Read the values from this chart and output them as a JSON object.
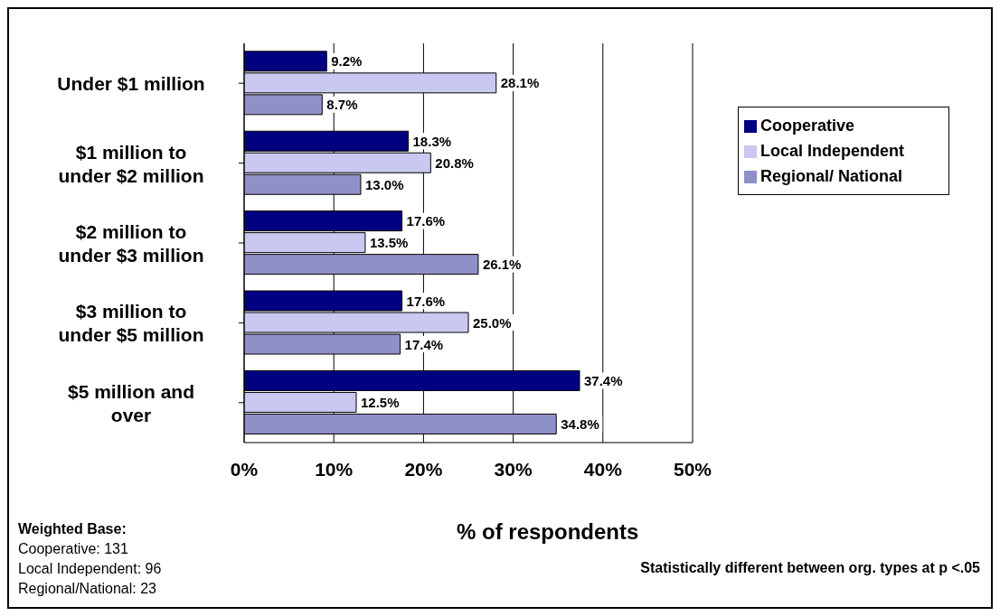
{
  "chart_data": {
    "type": "bar",
    "orientation": "horizontal",
    "xlabel": "% of respondents",
    "categories": [
      "Under $1 million",
      "$1 million to under $2 million",
      "$2 million to under $3 million",
      "$3 million to under $5 million",
      "$5 million and over"
    ],
    "series": [
      {
        "name": "Cooperative",
        "color": "#000080",
        "values": [
          9.2,
          18.3,
          17.6,
          17.6,
          37.4
        ],
        "value_labels": [
          "9.2%",
          "18.3%",
          "17.6%",
          "17.6%",
          "37.4%"
        ]
      },
      {
        "name": "Local Independent",
        "color": "#c8c8f0",
        "values": [
          28.1,
          20.8,
          13.5,
          25.0,
          12.5
        ],
        "value_labels": [
          "28.1%",
          "20.8%",
          "13.5%",
          "25.0%",
          "12.5%"
        ]
      },
      {
        "name": "Regional/ National",
        "color": "#9090c8",
        "values": [
          8.7,
          13.0,
          26.1,
          17.4,
          34.8
        ],
        "value_labels": [
          "8.7%",
          "13.0%",
          "26.1%",
          "17.4%",
          "34.8%"
        ]
      }
    ],
    "xlim": [
      0,
      50
    ],
    "xticks": [
      {
        "value": 0,
        "label": "0%"
      },
      {
        "value": 10,
        "label": "10%"
      },
      {
        "value": 20,
        "label": "20%"
      },
      {
        "value": 30,
        "label": "30%"
      },
      {
        "value": 40,
        "label": "40%"
      },
      {
        "value": 50,
        "label": "50%"
      }
    ],
    "grid": "x",
    "legend": "top right",
    "annotations": [
      "Weighted Base:",
      "Cooperative: 131",
      "Local Independent: 96",
      "Regional/National: 23",
      "Statistically different between org. types at p <.05"
    ]
  }
}
